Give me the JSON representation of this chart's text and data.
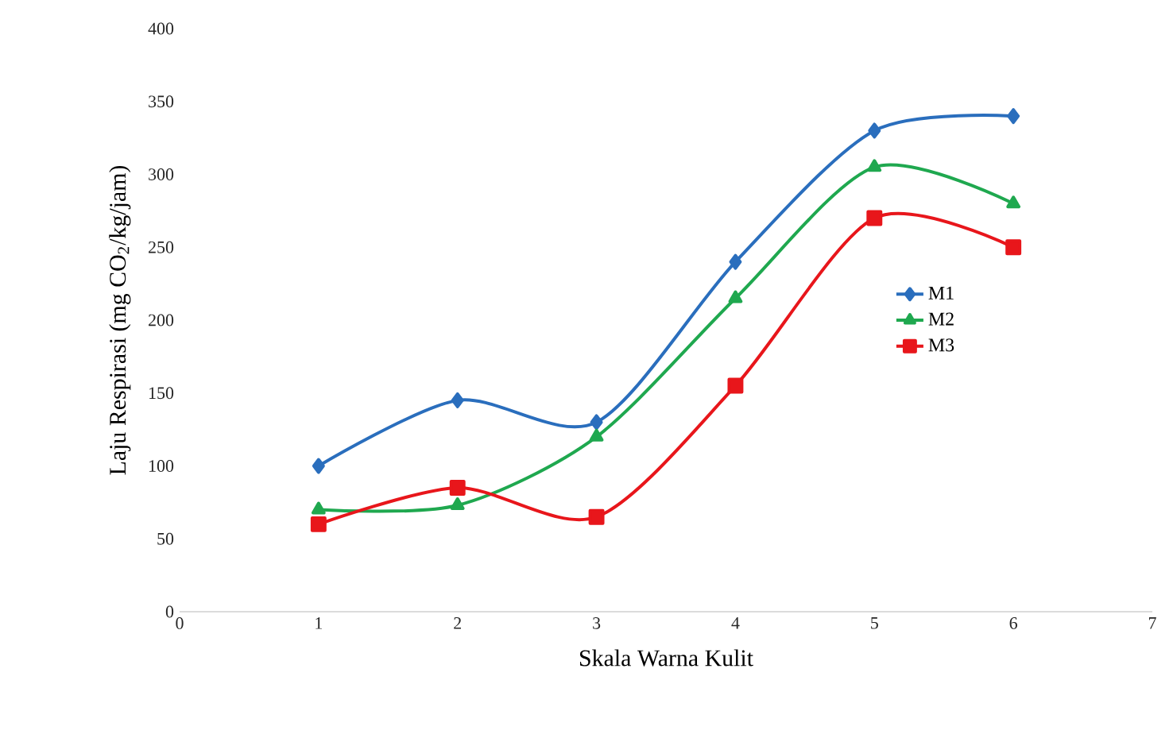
{
  "chart_data": {
    "type": "line",
    "xlabel": "Skala Warna Kulit",
    "ylabel": "Laju Respirasi (mg CO$_{2}$/kg/jam)",
    "x": [
      1,
      2,
      3,
      4,
      5,
      6
    ],
    "series": [
      {
        "name": "M1",
        "color": "#2a6ebd",
        "marker": "diamond",
        "values": [
          100,
          145,
          130,
          240,
          330,
          340
        ]
      },
      {
        "name": "M2",
        "color": "#1fa84f",
        "marker": "triangle",
        "values": [
          70,
          73,
          120,
          215,
          305,
          280
        ]
      },
      {
        "name": "M3",
        "color": "#e8161b",
        "marker": "square",
        "values": [
          60,
          85,
          65,
          155,
          270,
          250
        ]
      }
    ],
    "xlim": [
      0,
      7
    ],
    "xticks": [
      0,
      1,
      2,
      3,
      4,
      5,
      6,
      7
    ],
    "ylim": [
      0,
      400
    ],
    "yticks": [
      0,
      50,
      100,
      150,
      200,
      250,
      300,
      350,
      400
    ],
    "grid": false,
    "legend": "right",
    "line_style": "solid"
  }
}
